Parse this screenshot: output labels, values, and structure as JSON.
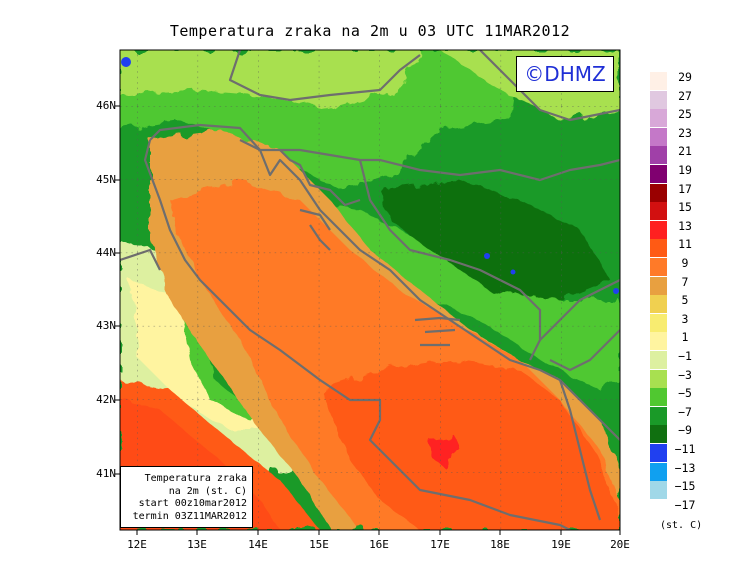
{
  "title": "Temperatura zraka na 2m u 03 UTC 11MAR2012",
  "copyright": "©DHMZ",
  "info_box": {
    "line1": "Temperatura zraka",
    "line2": "na 2m (st. C)",
    "line3": "start 00z10mar2012",
    "line4": "termin 03Z11MAR2012"
  },
  "latitude_labels": [
    "46N",
    "45N",
    "44N",
    "43N",
    "42N",
    "41N"
  ],
  "longitude_labels": [
    "12E",
    "13E",
    "14E",
    "15E",
    "16E",
    "17E",
    "18E",
    "19E",
    "20E"
  ],
  "legend": {
    "unit": "(st. C)",
    "labels": [
      "29",
      "27",
      "25",
      "23",
      "21",
      "19",
      "17",
      "15",
      "13",
      "11",
      "9",
      "7",
      "5",
      "3",
      "1",
      "−1",
      "−3",
      "−5",
      "−7",
      "−9",
      "−11",
      "−13",
      "−15",
      "−17"
    ],
    "colors": [
      "#fff0e6",
      "#e0c8e0",
      "#d8a8d8",
      "#c478c8",
      "#a040a8",
      "#800070",
      "#9a0000",
      "#d21010",
      "#ff2020",
      "#ff5a14",
      "#ff7a28",
      "#e8a040",
      "#f0d050",
      "#f8ec70",
      "#fff4a0",
      "#ddf0a0",
      "#a8e050",
      "#50c830",
      "#1a9a28",
      "#107010",
      "#2040f0",
      "#10a0f0",
      "#a0d8e8",
      "#e0f8ff"
    ]
  }
}
